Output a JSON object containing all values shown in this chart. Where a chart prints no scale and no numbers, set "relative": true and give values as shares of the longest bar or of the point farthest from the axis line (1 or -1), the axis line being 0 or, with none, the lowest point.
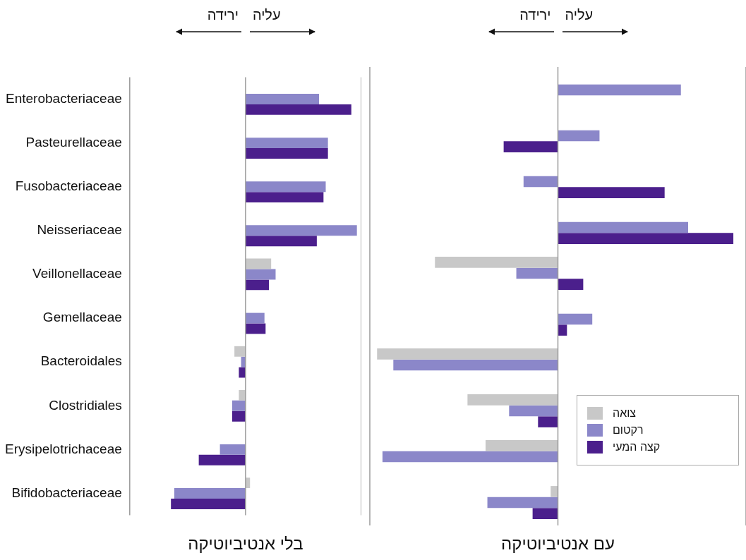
{
  "chart_data": [
    {
      "type": "bar",
      "orientation": "horizontal",
      "relative": true,
      "xlabel": "בלי אנטיביוטיקה",
      "annotations": [
        "ירידה",
        "עליה"
      ],
      "tick_labels": "y",
      "categories": [
        "Enterobacteriaceae",
        "Pasteurellaceae",
        "Fusobacteriaceae",
        "Neisseriaceae",
        "Veillonellaceae",
        "Gemellaceae",
        "Bacteroidales",
        "Clostridiales",
        "Erysipelotrichaceae",
        "Bifidobacteriaceae"
      ],
      "series": [
        {
          "color": "#c8c8c8",
          "values": [
            null,
            null,
            null,
            null,
            0.23,
            null,
            -0.1,
            -0.06,
            null,
            0.04
          ]
        },
        {
          "color": "#8b87c9",
          "values": [
            0.66,
            0.74,
            0.72,
            1,
            0.27,
            0.17,
            -0.04,
            -0.12,
            -0.23,
            -0.64
          ]
        },
        {
          "color": "#4b1f8c",
          "values": [
            0.95,
            0.74,
            0.7,
            0.64,
            0.21,
            0.18,
            -0.06,
            -0.12,
            -0.42,
            -0.67
          ]
        }
      ]
    },
    {
      "type": "bar",
      "orientation": "horizontal",
      "relative": true,
      "xlabel": "עם אנטיביוטיקה",
      "annotations": [
        "ירידה",
        "עליה"
      ],
      "tick_labels": false,
      "legend": "bottom right",
      "categories": [
        null,
        null,
        null,
        null,
        null,
        null,
        null,
        null,
        null,
        null
      ],
      "series": [
        {
          "name": "צואה",
          "color": "#c8c8c8",
          "values": [
            null,
            null,
            null,
            null,
            -0.68,
            null,
            -1,
            -0.5,
            -0.4,
            -0.04
          ]
        },
        {
          "name": "רקטום",
          "color": "#8b87c9",
          "values": [
            0.68,
            0.23,
            -0.19,
            0.72,
            -0.23,
            0.19,
            -0.91,
            -0.27,
            -0.97,
            -0.39
          ]
        },
        {
          "name": "קצה המעי",
          "color": "#4b1f8c",
          "values": [
            null,
            -0.3,
            0.59,
            0.97,
            0.14,
            0.05,
            null,
            -0.11,
            null,
            -0.14
          ]
        }
      ]
    }
  ]
}
